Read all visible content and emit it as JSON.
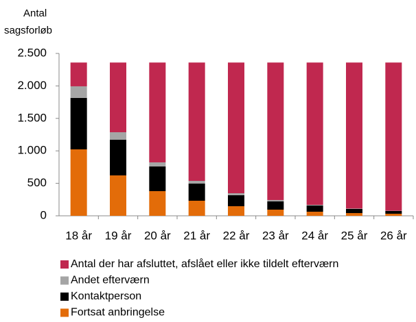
{
  "chart_data": {
    "type": "stacked_bar",
    "ylabel": [
      "Antal",
      "sagsforløb"
    ],
    "categories": [
      "18 år",
      "19 år",
      "20 år",
      "21 år",
      "22 år",
      "23 år",
      "24 år",
      "25 år",
      "26 år"
    ],
    "series": [
      {
        "name": "Antal der har afsluttet, afslået eller  ikke tildelt efterværn",
        "color": "#c0284f",
        "values": [
          366,
          1073,
          1537,
          1822,
          2012,
          2117,
          2191,
          2248,
          2282
        ]
      },
      {
        "name": "Andet efterværn",
        "color": "#a5a5a5",
        "values": [
          179,
          116,
          63,
          42,
          31,
          21,
          11,
          6,
          4
        ]
      },
      {
        "name": "Kontaktperson",
        "color": "#000000",
        "values": [
          792,
          549,
          380,
          264,
          169,
          127,
          95,
          64,
          42
        ]
      },
      {
        "name": "Fortsat anbringelse",
        "color": "#e36c09",
        "values": [
          1023,
          622,
          380,
          232,
          148,
          95,
          63,
          42,
          32
        ]
      }
    ],
    "ylim": [
      0,
      2500
    ],
    "yticks": [
      0,
      500,
      {
        "value": 1000,
        "label": "1.000"
      },
      {
        "value": 1500,
        "label": "1.500"
      },
      {
        "value": 2000,
        "label": "2.000"
      },
      {
        "value": 2500,
        "label": "2.500"
      }
    ]
  }
}
